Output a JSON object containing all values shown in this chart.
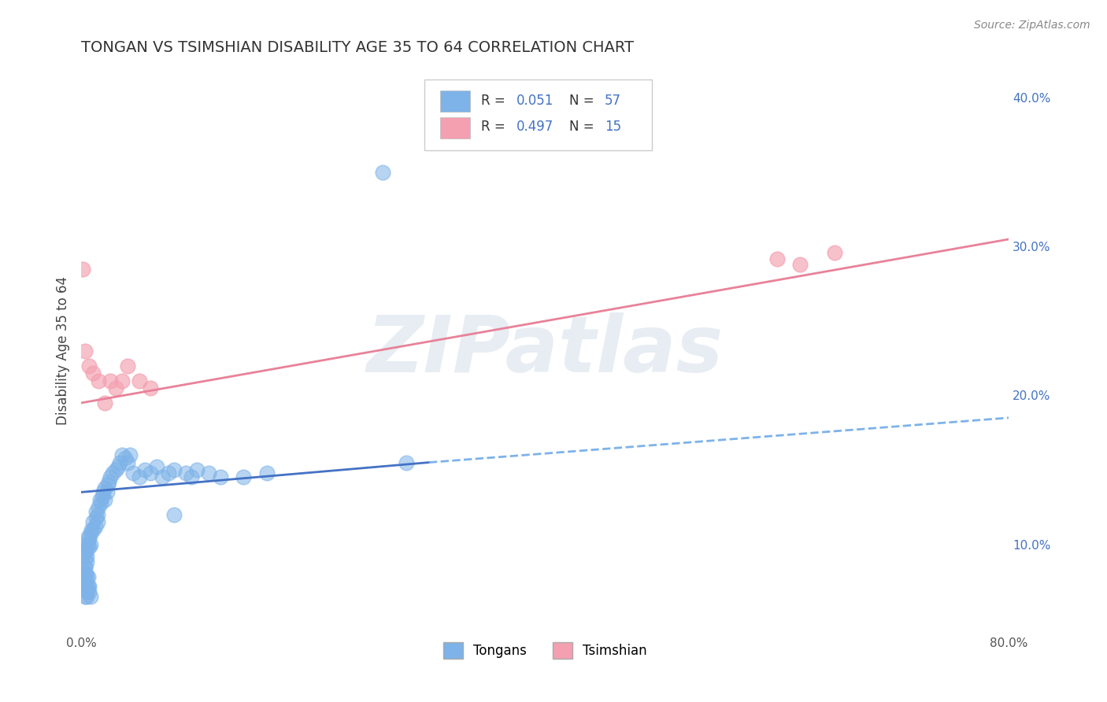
{
  "title": "TONGAN VS TSIMSHIAN DISABILITY AGE 35 TO 64 CORRELATION CHART",
  "source": "Source: ZipAtlas.com",
  "ylabel": "Disability Age 35 to 64",
  "xlim": [
    0.0,
    0.8
  ],
  "ylim": [
    0.04,
    0.42
  ],
  "xticks": [
    0.0,
    0.1,
    0.2,
    0.3,
    0.4,
    0.5,
    0.6,
    0.7,
    0.8
  ],
  "xticklabels": [
    "0.0%",
    "",
    "",
    "",
    "",
    "",
    "",
    "",
    "80.0%"
  ],
  "yticks_right": [
    0.1,
    0.2,
    0.3,
    0.4
  ],
  "yticklabels_right": [
    "10.0%",
    "20.0%",
    "30.0%",
    "40.0%"
  ],
  "tongan_color": "#7db3e8",
  "tsimshian_color": "#f4a0b0",
  "tongan_line_color": "#4472c4",
  "tsimshian_line_color": "#e8829a",
  "dashed_line_color": "#7db3e8",
  "blue_text_color": "#4472c4",
  "legend_label_1": "Tongans",
  "legend_label_2": "Tsimshian",
  "watermark": "ZIPatlas",
  "tongan_scatter_x": [
    0.003,
    0.003,
    0.003,
    0.004,
    0.004,
    0.005,
    0.005,
    0.005,
    0.006,
    0.006,
    0.007,
    0.007,
    0.008,
    0.008,
    0.009,
    0.01,
    0.01,
    0.012,
    0.013,
    0.013,
    0.014,
    0.014,
    0.015,
    0.016,
    0.017,
    0.018,
    0.019,
    0.02,
    0.02,
    0.022,
    0.023,
    0.024,
    0.025,
    0.027,
    0.03,
    0.032,
    0.033,
    0.035,
    0.038,
    0.04,
    0.042,
    0.045,
    0.05,
    0.055,
    0.06,
    0.065,
    0.07,
    0.075,
    0.08,
    0.09,
    0.095,
    0.1,
    0.11,
    0.12,
    0.14,
    0.16,
    0.28
  ],
  "tongan_scatter_y": [
    0.085,
    0.09,
    0.095,
    0.095,
    0.1,
    0.088,
    0.092,
    0.098,
    0.1,
    0.105,
    0.098,
    0.104,
    0.1,
    0.107,
    0.11,
    0.11,
    0.115,
    0.112,
    0.118,
    0.122,
    0.115,
    0.12,
    0.125,
    0.13,
    0.128,
    0.132,
    0.135,
    0.13,
    0.138,
    0.135,
    0.14,
    0.142,
    0.145,
    0.148,
    0.15,
    0.152,
    0.155,
    0.16,
    0.158,
    0.155,
    0.16,
    0.148,
    0.145,
    0.15,
    0.148,
    0.152,
    0.145,
    0.148,
    0.15,
    0.148,
    0.145,
    0.15,
    0.148,
    0.145,
    0.145,
    0.148,
    0.155
  ],
  "tongan_scatter_extra_x": [
    0.003,
    0.003,
    0.003,
    0.003,
    0.003,
    0.004,
    0.004,
    0.005,
    0.005,
    0.005,
    0.005,
    0.006,
    0.006,
    0.007,
    0.007,
    0.008,
    0.26,
    0.08
  ],
  "tongan_scatter_extra_y": [
    0.075,
    0.08,
    0.085,
    0.07,
    0.065,
    0.075,
    0.08,
    0.078,
    0.072,
    0.068,
    0.065,
    0.072,
    0.078,
    0.072,
    0.068,
    0.065,
    0.35,
    0.12
  ],
  "tsimshian_scatter_x": [
    0.001,
    0.003,
    0.007,
    0.01,
    0.015,
    0.02,
    0.025,
    0.03,
    0.035,
    0.04,
    0.05,
    0.06,
    0.6,
    0.62,
    0.65
  ],
  "tsimshian_scatter_y": [
    0.285,
    0.23,
    0.22,
    0.215,
    0.21,
    0.195,
    0.21,
    0.205,
    0.21,
    0.22,
    0.21,
    0.205,
    0.292,
    0.288,
    0.296
  ],
  "tongan_line_x": [
    0.0,
    0.3
  ],
  "tongan_line_y": [
    0.135,
    0.155
  ],
  "dashed_line_x": [
    0.3,
    0.8
  ],
  "dashed_line_y": [
    0.155,
    0.185
  ],
  "tsimshian_line_x": [
    0.0,
    0.8
  ],
  "tsimshian_line_y": [
    0.195,
    0.305
  ]
}
